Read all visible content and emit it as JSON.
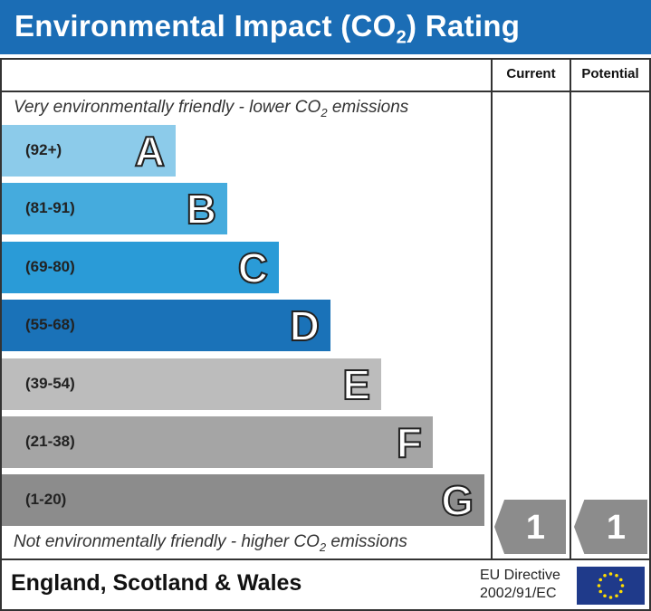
{
  "title_parts": {
    "pre": "Environmental Impact (CO",
    "sub": "2",
    "post": ") Rating"
  },
  "header": {
    "current": "Current",
    "potential": "Potential"
  },
  "top_note": {
    "pre": "Very environmentally friendly - lower CO",
    "sub": "2",
    "post": " emissions"
  },
  "bottom_note": {
    "pre": "Not environmentally friendly - higher CO",
    "sub": "2",
    "post": " emissions"
  },
  "footer": {
    "region": "England, Scotland & Wales",
    "directive_line1": "EU Directive",
    "directive_line2": "2002/91/EC",
    "flag": "eu-flag"
  },
  "chart_data": {
    "type": "bar",
    "bands": [
      {
        "letter": "A",
        "range": "(92+)",
        "color": "#8ccbea"
      },
      {
        "letter": "B",
        "range": "(81-91)",
        "color": "#45abdd"
      },
      {
        "letter": "C",
        "range": "(69-80)",
        "color": "#2a9bd7"
      },
      {
        "letter": "D",
        "range": "(55-68)",
        "color": "#1a72b8"
      },
      {
        "letter": "E",
        "range": "(39-54)",
        "color": "#bcbcbc"
      },
      {
        "letter": "F",
        "range": "(21-38)",
        "color": "#a5a5a5"
      },
      {
        "letter": "G",
        "range": "(1-20)",
        "color": "#8c8c8c"
      }
    ],
    "current": {
      "value": "1",
      "band": "G",
      "color": "#8c8c8c"
    },
    "potential": {
      "value": "1",
      "band": "G",
      "color": "#8c8c8c"
    }
  }
}
